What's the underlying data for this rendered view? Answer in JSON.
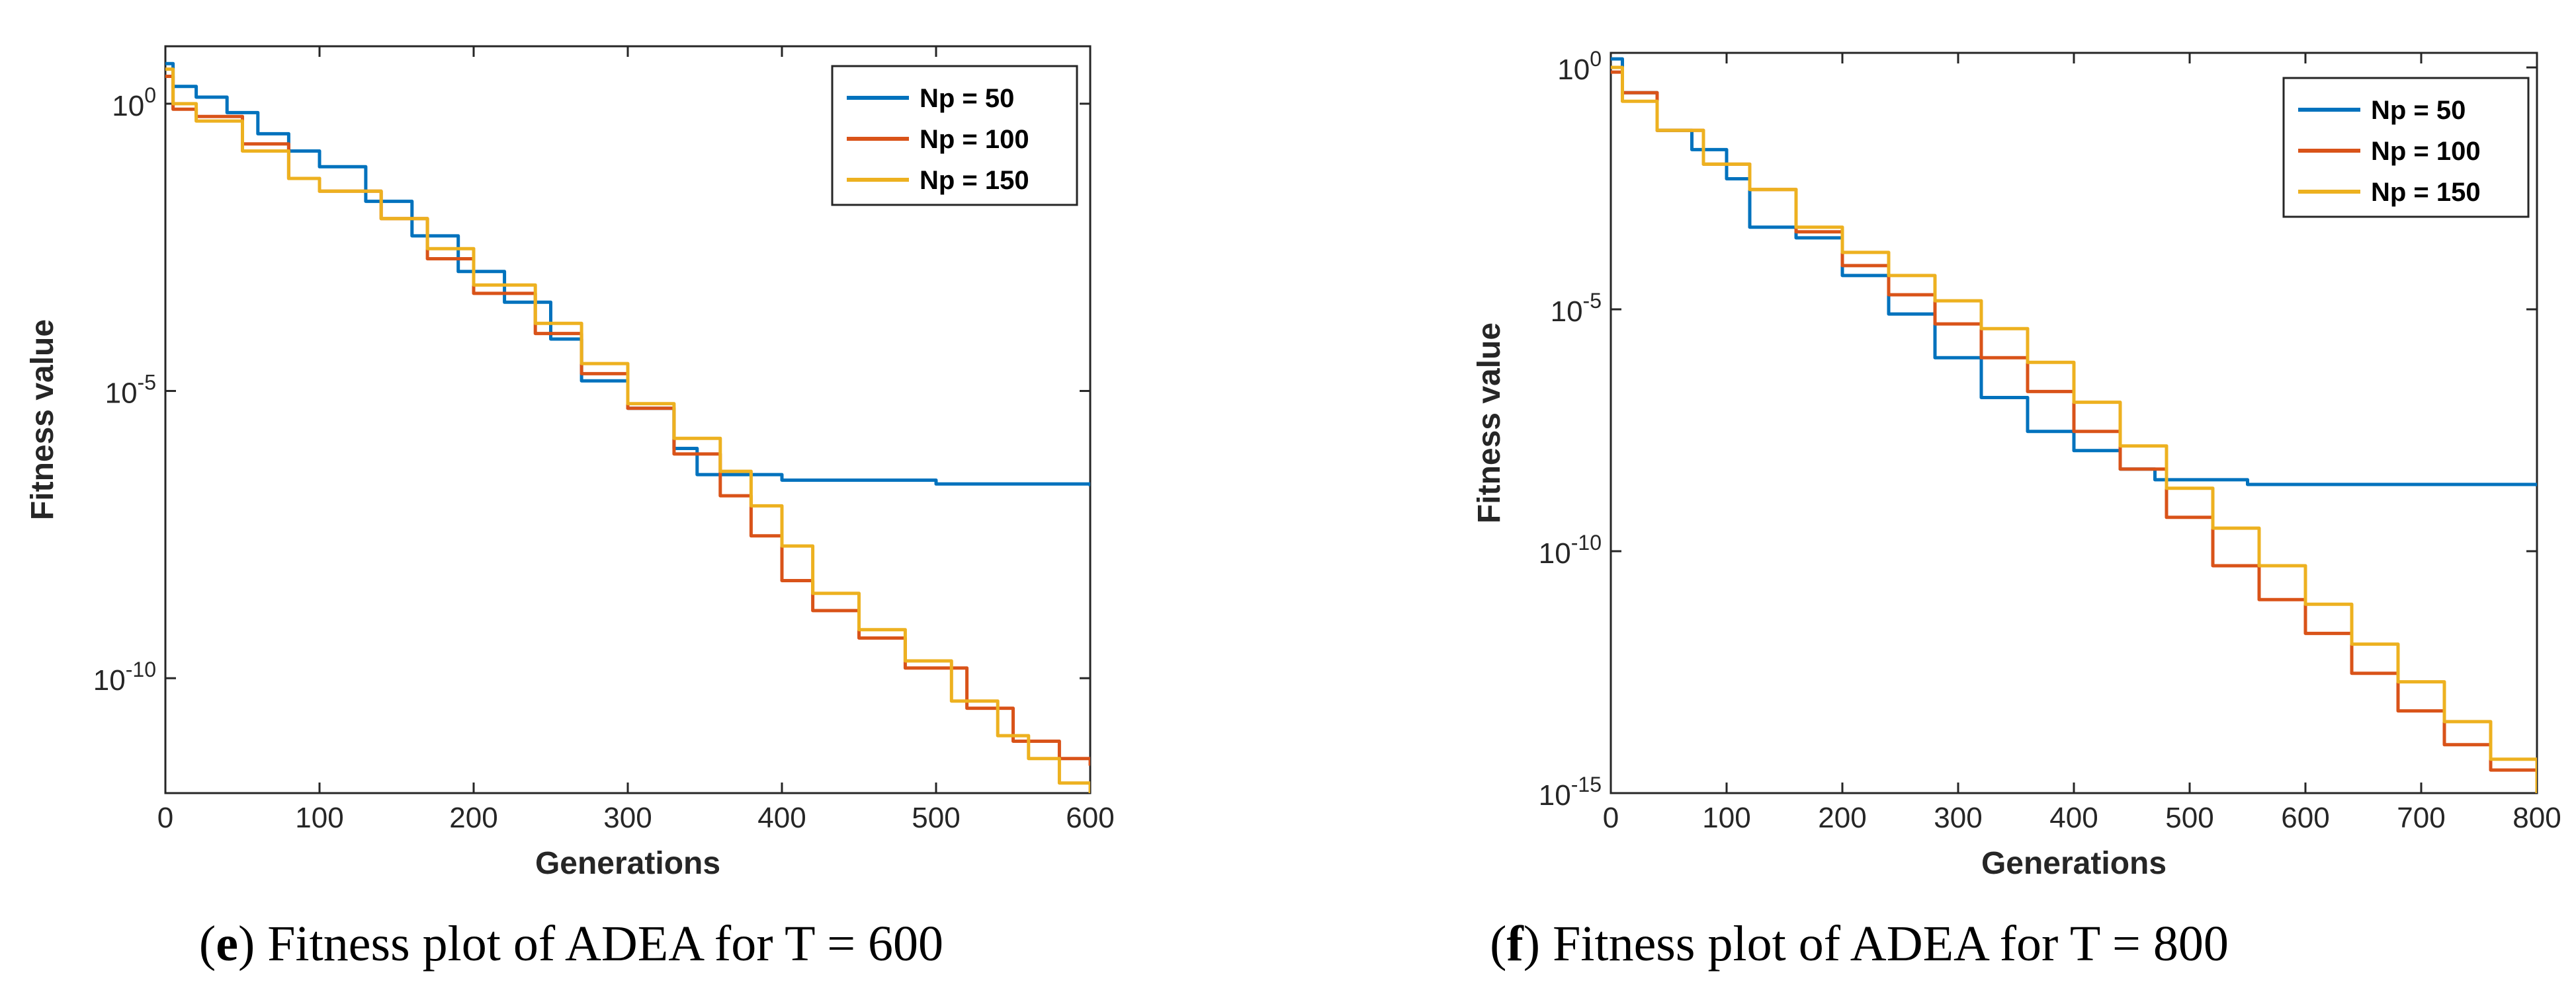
{
  "chart_data": [
    {
      "type": "line",
      "xlabel": "Generations",
      "ylabel": "Fitness value",
      "yscale": "log",
      "xlim": [
        0,
        600
      ],
      "ylim": [
        1e-12,
        10
      ],
      "x_ticks": [
        "0",
        "100",
        "200",
        "300",
        "400",
        "500",
        "600"
      ],
      "y_ticks": [
        {
          "base": "10",
          "exp": "-10"
        },
        {
          "base": "10",
          "exp": "-5"
        },
        {
          "base": "10",
          "exp": "0"
        }
      ],
      "legend_position": "top-right",
      "series": [
        {
          "name": "Np = 50",
          "color": "#0072BD",
          "points": [
            [
              0,
              5
            ],
            [
              5,
              2
            ],
            [
              20,
              1.3
            ],
            [
              40,
              0.7
            ],
            [
              60,
              0.3
            ],
            [
              80,
              0.15
            ],
            [
              100,
              0.08
            ],
            [
              130,
              0.02
            ],
            [
              160,
              0.005
            ],
            [
              190,
              0.0012
            ],
            [
              220,
              0.00035
            ],
            [
              250,
              8e-05
            ],
            [
              270,
              1.5e-05
            ],
            [
              300,
              5e-06
            ],
            [
              330,
              1e-06
            ],
            [
              345,
              3.5e-07
            ],
            [
              400,
              2.8e-07
            ],
            [
              500,
              2.4e-07
            ],
            [
              600,
              2.2e-07
            ]
          ]
        },
        {
          "name": "Np = 100",
          "color": "#D95319",
          "points": [
            [
              0,
              3
            ],
            [
              5,
              0.8
            ],
            [
              20,
              0.6
            ],
            [
              50,
              0.2
            ],
            [
              80,
              0.05
            ],
            [
              100,
              0.03
            ],
            [
              140,
              0.01
            ],
            [
              170,
              0.002
            ],
            [
              200,
              0.0005
            ],
            [
              240,
              0.0001
            ],
            [
              270,
              2e-05
            ],
            [
              300,
              5e-06
            ],
            [
              330,
              8e-07
            ],
            [
              360,
              1.5e-07
            ],
            [
              380,
              3e-08
            ],
            [
              400,
              5e-09
            ],
            [
              420,
              1.5e-09
            ],
            [
              450,
              5e-10
            ],
            [
              480,
              1.5e-10
            ],
            [
              520,
              3e-11
            ],
            [
              550,
              8e-12
            ],
            [
              580,
              4e-12
            ],
            [
              600,
              3e-12
            ]
          ]
        },
        {
          "name": "Np = 150",
          "color": "#EDB120",
          "points": [
            [
              0,
              4
            ],
            [
              5,
              1
            ],
            [
              20,
              0.5
            ],
            [
              50,
              0.15
            ],
            [
              80,
              0.05
            ],
            [
              100,
              0.03
            ],
            [
              140,
              0.01
            ],
            [
              170,
              0.003
            ],
            [
              200,
              0.0007
            ],
            [
              240,
              0.00015
            ],
            [
              270,
              3e-05
            ],
            [
              300,
              6e-06
            ],
            [
              330,
              1.5e-06
            ],
            [
              360,
              4e-07
            ],
            [
              380,
              1e-07
            ],
            [
              400,
              2e-08
            ],
            [
              420,
              3e-09
            ],
            [
              450,
              7e-10
            ],
            [
              480,
              2e-10
            ],
            [
              510,
              4e-11
            ],
            [
              540,
              1e-11
            ],
            [
              560,
              4e-12
            ],
            [
              580,
              1.5e-12
            ],
            [
              600,
              1e-12
            ]
          ]
        }
      ]
    },
    {
      "type": "line",
      "xlabel": "Generations",
      "ylabel": "Fitness value",
      "yscale": "log",
      "xlim": [
        0,
        800
      ],
      "ylim": [
        1e-15,
        2
      ],
      "x_ticks": [
        "0",
        "100",
        "200",
        "300",
        "400",
        "500",
        "600",
        "700",
        "800"
      ],
      "y_ticks": [
        {
          "base": "10",
          "exp": "-15"
        },
        {
          "base": "10",
          "exp": "-10"
        },
        {
          "base": "10",
          "exp": "-5"
        },
        {
          "base": "10",
          "exp": "0"
        }
      ],
      "legend_position": "top-right",
      "series": [
        {
          "name": "Np = 50",
          "color": "#0072BD",
          "points": [
            [
              0,
              1.5
            ],
            [
              10,
              0.3
            ],
            [
              40,
              0.05
            ],
            [
              70,
              0.02
            ],
            [
              100,
              0.005
            ],
            [
              120,
              0.0005
            ],
            [
              160,
              0.0003
            ],
            [
              200,
              5e-05
            ],
            [
              240,
              8e-06
            ],
            [
              280,
              1e-06
            ],
            [
              320,
              1.5e-07
            ],
            [
              360,
              3e-08
            ],
            [
              400,
              1.2e-08
            ],
            [
              440,
              5e-09
            ],
            [
              470,
              3e-09
            ],
            [
              550,
              2.4e-09
            ],
            [
              800,
              2.2e-09
            ]
          ]
        },
        {
          "name": "Np = 100",
          "color": "#D95319",
          "points": [
            [
              0,
              0.8
            ],
            [
              10,
              0.3
            ],
            [
              40,
              0.05
            ],
            [
              80,
              0.01
            ],
            [
              120,
              0.003
            ],
            [
              160,
              0.0004
            ],
            [
              200,
              8e-05
            ],
            [
              240,
              2e-05
            ],
            [
              280,
              5e-06
            ],
            [
              320,
              1e-06
            ],
            [
              360,
              2e-07
            ],
            [
              400,
              3e-08
            ],
            [
              440,
              5e-09
            ],
            [
              480,
              5e-10
            ],
            [
              520,
              5e-11
            ],
            [
              560,
              1e-11
            ],
            [
              600,
              2e-12
            ],
            [
              640,
              3e-13
            ],
            [
              680,
              5e-14
            ],
            [
              720,
              1e-14
            ],
            [
              760,
              3e-15
            ],
            [
              800,
              2e-15
            ]
          ]
        },
        {
          "name": "Np = 150",
          "color": "#EDB120",
          "points": [
            [
              0,
              1
            ],
            [
              10,
              0.2
            ],
            [
              40,
              0.05
            ],
            [
              80,
              0.01
            ],
            [
              120,
              0.003
            ],
            [
              160,
              0.0005
            ],
            [
              200,
              0.00015
            ],
            [
              240,
              5e-05
            ],
            [
              280,
              1.5e-05
            ],
            [
              320,
              4e-06
            ],
            [
              360,
              8e-07
            ],
            [
              400,
              1.2e-07
            ],
            [
              440,
              1.5e-08
            ],
            [
              480,
              2e-09
            ],
            [
              520,
              3e-10
            ],
            [
              560,
              5e-11
            ],
            [
              600,
              8e-12
            ],
            [
              640,
              1.2e-12
            ],
            [
              680,
              2e-13
            ],
            [
              720,
              3e-14
            ],
            [
              760,
              5e-15
            ],
            [
              800,
              1e-15
            ]
          ]
        }
      ]
    }
  ],
  "captions": [
    {
      "letter": "e",
      "text": "Fitness plot of ADEA for T = 600"
    },
    {
      "letter": "f",
      "text": "Fitness plot of ADEA for T = 800"
    }
  ]
}
